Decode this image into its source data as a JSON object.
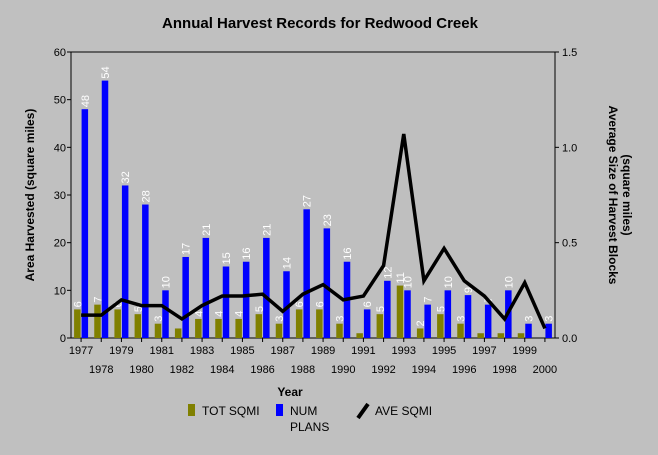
{
  "chart_data": {
    "type": "bar",
    "title": "Annual Harvest Records for Redwood Creek",
    "xlabel": "Year",
    "ylabel": "Area Harvested (square miles)",
    "y2label_line1": "Average Size of Harvest Blocks",
    "y2label_line2": "(square miles)",
    "ylim": [
      0,
      60
    ],
    "y2lim": [
      0,
      1.5
    ],
    "yticks": [
      "0",
      "10",
      "20",
      "30",
      "40",
      "50",
      "60"
    ],
    "y2ticks": [
      "0.0",
      "0.5",
      "1.0",
      "1.5"
    ],
    "grid": false,
    "legend_position": "bottom",
    "categories": [
      "1977",
      "1978",
      "1979",
      "1980",
      "1981",
      "1982",
      "1983",
      "1984",
      "1985",
      "1986",
      "1987",
      "1988",
      "1989",
      "1990",
      "1991",
      "1992",
      "1993",
      "1994",
      "1995",
      "1996",
      "1997",
      "1998",
      "1999",
      "2000"
    ],
    "series": [
      {
        "name": "TOT SQMI",
        "axis": "left",
        "kind": "bar",
        "color": "#808000",
        "values": [
          6,
          7,
          6,
          5,
          3,
          2,
          4,
          4,
          4,
          5,
          3,
          6,
          6,
          3,
          1,
          5,
          11,
          2,
          5,
          3,
          1,
          1,
          1,
          0
        ],
        "labels": [
          "6",
          "7",
          "6",
          "5",
          "3",
          "",
          "4",
          "4",
          "4",
          "5",
          "3",
          "6",
          "6",
          "3",
          "",
          "5",
          "11",
          "2",
          "5",
          "3",
          "",
          "",
          "",
          ""
        ]
      },
      {
        "name": "NUM PLANS",
        "axis": "left",
        "kind": "bar",
        "color": "#0000ff",
        "values": [
          48,
          54,
          32,
          28,
          10,
          17,
          21,
          15,
          16,
          21,
          14,
          27,
          23,
          16,
          6,
          12,
          10,
          7,
          10,
          9,
          7,
          10,
          3,
          3
        ],
        "labels": [
          "48",
          "54",
          "32",
          "28",
          "10",
          "17",
          "21",
          "15",
          "16",
          "21",
          "14",
          "27",
          "23",
          "16",
          "6",
          "12",
          "10",
          "7",
          "10",
          "9",
          "7",
          "10",
          "3",
          "3"
        ]
      },
      {
        "name": "AVE SQMI",
        "axis": "right",
        "kind": "line",
        "color": "#000000",
        "values": [
          0.12,
          0.12,
          0.2,
          0.17,
          0.17,
          0.1,
          0.17,
          0.22,
          0.22,
          0.23,
          0.14,
          0.23,
          0.28,
          0.2,
          0.22,
          0.38,
          1.07,
          0.3,
          0.47,
          0.3,
          0.22,
          0.1,
          0.29,
          0.05
        ]
      }
    ],
    "legend": {
      "tot": "TOT SQMI",
      "num_line1": "NUM",
      "num_line2": "PLANS",
      "ave": "AVE SQMI"
    }
  }
}
